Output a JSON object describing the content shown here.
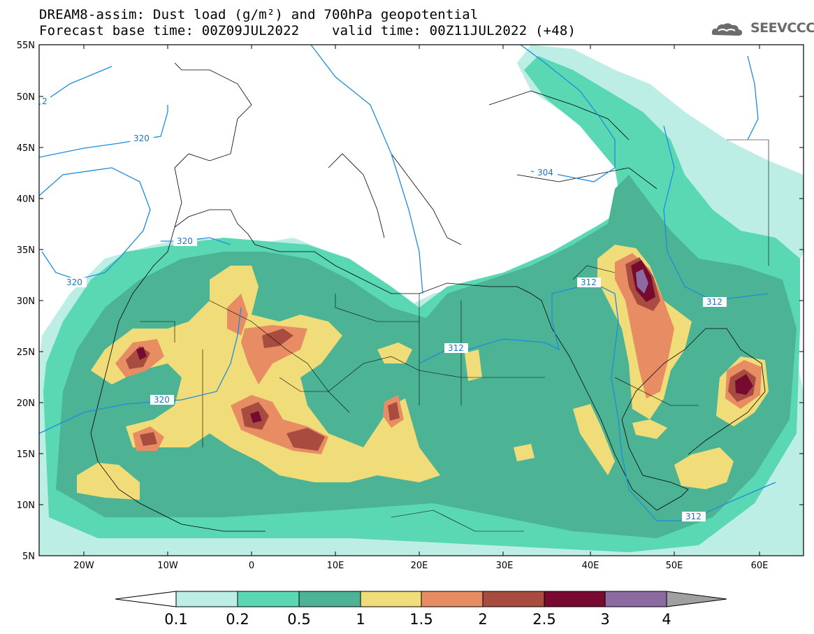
{
  "title_line1": "DREAM8-assim: Dust load (g/m²) and 700hPa geopotential",
  "title_line2": "Forecast base time: 00Z09JUL2022    valid time: 00Z11JUL2022 (+48)",
  "logo_text": "SEEVCCC",
  "colors": {
    "c1": "#bdeee6",
    "c2": "#5ad8b4",
    "c3": "#4cb494",
    "c4": "#f0dc78",
    "c5": "#e88c64",
    "c6": "#a84c40",
    "c7": "#780a32",
    "c8": "#8c6ca0",
    "over": "#a0a0a0",
    "contour": "#1e8cdc",
    "land_line": "#000000"
  },
  "map": {
    "lon_ticks": [
      "20W",
      "10W",
      "0",
      "10E",
      "20E",
      "30E",
      "40E",
      "50E",
      "60E"
    ],
    "lat_ticks": [
      "55N",
      "50N",
      "45N",
      "40N",
      "35N",
      "30N",
      "25N",
      "20N",
      "15N",
      "10N",
      "5N"
    ],
    "contour_labels": [
      "320",
      "320",
      "320",
      "320",
      "312",
      "312",
      "312",
      "312",
      "304",
      "2"
    ]
  },
  "colorbar": {
    "labels": [
      "0.1",
      "0.2",
      "0.5",
      "1",
      "1.5",
      "2",
      "2.5",
      "3",
      "4"
    ]
  }
}
